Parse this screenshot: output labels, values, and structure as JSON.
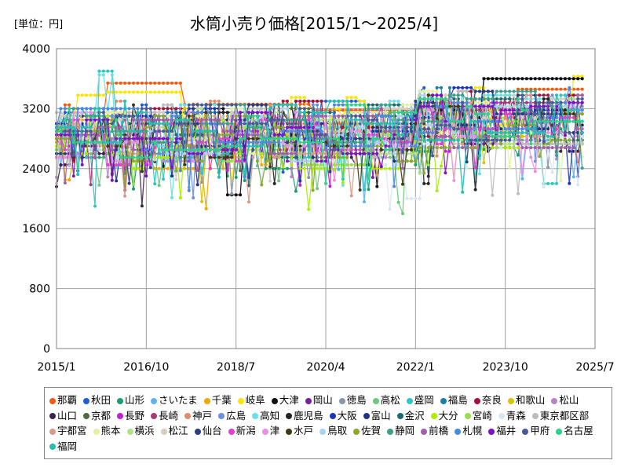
{
  "chart_data": {
    "type": "line",
    "title": "水筒小売り価格[2015/1～2025/4]",
    "unit_label": "[単位：円]",
    "x_ticks": [
      "2015/1",
      "2016/10",
      "2018/7",
      "2020/4",
      "2022/1",
      "2023/10",
      "2025/7"
    ],
    "x_range": [
      "2015/1",
      "2025/7"
    ],
    "y_ticks": [
      0,
      800,
      1600,
      2400,
      3200,
      4000
    ],
    "ylim": [
      0,
      4000
    ],
    "grid": true,
    "legend_position": "bottom",
    "series": [
      {
        "name": "那覇",
        "color": "#f25a10",
        "base": 3000,
        "hi": [
          [
            12,
            30,
            3540
          ],
          [
            30,
            60,
            3260
          ],
          [
            60,
            108,
            3180
          ],
          [
            108,
            124,
            3460
          ]
        ]
      },
      {
        "name": "秋田",
        "color": "#1f5ed6",
        "base": 2950,
        "hi": [
          [
            24,
            48,
            3150
          ],
          [
            100,
            124,
            3600
          ]
        ]
      },
      {
        "name": "山形",
        "color": "#1a9e6a",
        "base": 2700,
        "hi": [
          [
            0,
            12,
            2550
          ]
        ]
      },
      {
        "name": "さいたま",
        "color": "#5ab4f0",
        "base": 2850
      },
      {
        "name": "千葉",
        "color": "#f0a800",
        "base": 2750,
        "hi": [
          [
            2,
            4,
            2250
          ]
        ]
      },
      {
        "name": "岐阜",
        "color": "#ffe400",
        "base": 3100,
        "hi": [
          [
            5,
            12,
            3380
          ],
          [
            12,
            30,
            3420
          ]
        ]
      },
      {
        "name": "大津",
        "color": "#111111",
        "base": 2900,
        "hi": [
          [
            40,
            44,
            2050
          ],
          [
            100,
            124,
            3600
          ]
        ]
      },
      {
        "name": "岡山",
        "color": "#7b1fa2",
        "base": 2800
      },
      {
        "name": "徳島",
        "color": "#8a96a8",
        "base": 2900
      },
      {
        "name": "高松",
        "color": "#6cc979",
        "base": 2800,
        "hi": [
          [
            80,
            82,
            1950
          ]
        ]
      },
      {
        "name": "盛岡",
        "color": "#2dc6c4",
        "base": 2900,
        "hi": [
          [
            10,
            14,
            3700
          ],
          [
            114,
            118,
            2200
          ]
        ]
      },
      {
        "name": "福島",
        "color": "#1b7fa8",
        "base": 3000
      },
      {
        "name": "奈良",
        "color": "#a4113a",
        "base": 2950
      },
      {
        "name": "和歌山",
        "color": "#d8c400",
        "base": 2850
      },
      {
        "name": "松山",
        "color": "#b884c6",
        "base": 2800
      },
      {
        "name": "山口",
        "color": "#3b2450",
        "base": 2750
      },
      {
        "name": "京都",
        "color": "#4f6a40",
        "base": 2900
      },
      {
        "name": "長野",
        "color": "#c020d8",
        "base": 2800
      },
      {
        "name": "長崎",
        "color": "#a83a78",
        "base": 2850
      },
      {
        "name": "神戸",
        "color": "#e58a6a",
        "base": 2950
      },
      {
        "name": "広島",
        "color": "#6a8fe0",
        "base": 2900
      },
      {
        "name": "高知",
        "color": "#68dfe8",
        "base": 2950,
        "hi": [
          [
            10,
            14,
            3650
          ]
        ]
      },
      {
        "name": "鹿児島",
        "color": "#242424",
        "base": 2850,
        "hi": [
          [
            86,
            88,
            2200
          ]
        ]
      },
      {
        "name": "大阪",
        "color": "#1a34b8",
        "base": 3000
      },
      {
        "name": "富山",
        "color": "#21308a",
        "base": 2850
      },
      {
        "name": "金沢",
        "color": "#1a6a6e",
        "base": 2900
      },
      {
        "name": "大分",
        "color": "#a9ee00",
        "base": 2750
      },
      {
        "name": "宮崎",
        "color": "#98e04a",
        "base": 2800
      },
      {
        "name": "青森",
        "color": "#d8e6f2",
        "base": 2800,
        "hi": [
          [
            82,
            86,
            2000
          ]
        ]
      },
      {
        "name": "東京都区部",
        "color": "#bdbdbd",
        "base": 2900
      },
      {
        "name": "宇都宮",
        "color": "#d89a8a",
        "base": 2850
      },
      {
        "name": "熊本",
        "color": "#e6f0a0",
        "base": 2900
      },
      {
        "name": "横浜",
        "color": "#b2e288",
        "base": 2850
      },
      {
        "name": "松江",
        "color": "#d8ccc0",
        "base": 2900
      },
      {
        "name": "仙台",
        "color": "#2a3e82",
        "base": 2950
      },
      {
        "name": "新潟",
        "color": "#e040d0",
        "base": 2800
      },
      {
        "name": "津",
        "color": "#e890e8",
        "base": 2850
      },
      {
        "name": "水戸",
        "color": "#3e3a10",
        "base": 2900
      },
      {
        "name": "鳥取",
        "color": "#a8d4f0",
        "base": 2850
      },
      {
        "name": "佐賀",
        "color": "#8aa830",
        "base": 2800
      },
      {
        "name": "静岡",
        "color": "#3aa08a",
        "base": 2900
      },
      {
        "name": "前橋",
        "color": "#a060a8",
        "base": 2850
      },
      {
        "name": "札幌",
        "color": "#4a88e8",
        "base": 2950
      },
      {
        "name": "福井",
        "color": "#7b10c8",
        "base": 2850
      },
      {
        "name": "甲府",
        "color": "#485a98",
        "base": 2900
      },
      {
        "name": "名古屋",
        "color": "#28d488",
        "base": 2900
      },
      {
        "name": "福岡",
        "color": "#22c0b0",
        "base": 2950
      }
    ]
  }
}
